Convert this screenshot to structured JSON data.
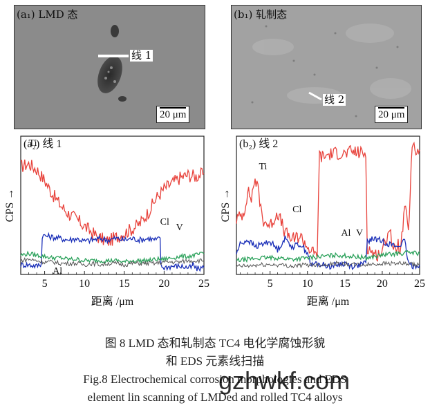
{
  "panels": {
    "a1": {
      "label": "(a₁) LMD 态",
      "line_label": "线 1",
      "scale": "20 μm"
    },
    "b1": {
      "label": "(b₁) 轧制态",
      "line_label": "线 2",
      "scale": "20 μm"
    }
  },
  "chart_data": [
    {
      "type": "line",
      "title": "(a₂) 线 1",
      "xlabel": "距离 /μm",
      "ylabel": "CPS",
      "xlim": [
        2,
        25
      ],
      "xticks": [
        5,
        10,
        15,
        20,
        25
      ],
      "ylim": [
        0,
        100
      ],
      "grid": false,
      "series": [
        {
          "name": "Ti",
          "color": "#e8423b",
          "x": [
            2,
            3,
            4,
            5,
            6,
            7,
            8,
            9,
            10,
            11,
            12,
            13,
            14,
            15,
            16,
            17,
            18,
            19,
            20,
            21,
            22,
            23,
            24,
            25
          ],
          "y": [
            78,
            80,
            76,
            68,
            58,
            50,
            44,
            40,
            35,
            30,
            26,
            24,
            27,
            30,
            33,
            37,
            45,
            55,
            62,
            66,
            70,
            72,
            71,
            73
          ]
        },
        {
          "name": "Cl",
          "color": "#1a2fb8",
          "x": [
            2,
            3,
            4,
            4.6,
            4.7,
            5,
            6,
            7,
            8,
            9,
            10,
            11,
            12,
            13,
            14,
            15,
            16,
            17,
            18,
            19,
            19.5,
            19.6,
            20,
            21,
            22,
            23,
            23.5,
            23.6,
            24,
            25
          ],
          "y": [
            7,
            7,
            6,
            8,
            28,
            28,
            27,
            26,
            25,
            26,
            24,
            25,
            26,
            25,
            26,
            25,
            26,
            25,
            26,
            25,
            26,
            6,
            5,
            6,
            6,
            5,
            5,
            8,
            4,
            5
          ]
        },
        {
          "name": "V",
          "color": "#2aa15a",
          "x": [
            2,
            3,
            4,
            5,
            6,
            7,
            8,
            9,
            10,
            11,
            12,
            13,
            14,
            15,
            16,
            17,
            18,
            19,
            20,
            21,
            22,
            23,
            24,
            25
          ],
          "y": [
            14,
            15,
            14,
            13,
            12,
            12,
            11,
            11,
            10,
            10,
            10,
            10,
            10,
            9,
            10,
            10,
            10,
            11,
            11,
            12,
            13,
            13,
            14,
            15
          ]
        },
        {
          "name": "Al",
          "color": "#555555",
          "x": [
            2,
            3,
            4,
            5,
            6,
            7,
            8,
            9,
            10,
            11,
            12,
            13,
            14,
            15,
            16,
            17,
            18,
            19,
            20,
            21,
            22,
            23,
            24,
            25
          ],
          "y": [
            10,
            11,
            10,
            9,
            9,
            8,
            8,
            8,
            7,
            8,
            7,
            8,
            8,
            7,
            8,
            8,
            8,
            8,
            9,
            9,
            9,
            10,
            10,
            10
          ]
        }
      ]
    },
    {
      "type": "line",
      "title": "(b₂) 线 2",
      "xlabel": "距离 /μm",
      "ylabel": "CPS",
      "xlim": [
        0.5,
        25
      ],
      "xticks": [
        5,
        10,
        15,
        20,
        25
      ],
      "ylim": [
        0,
        100
      ],
      "grid": false,
      "series": [
        {
          "name": "Ti",
          "color": "#e8423b",
          "x": [
            0.5,
            1,
            1.5,
            2,
            2.5,
            3,
            3.5,
            4,
            5,
            6,
            7,
            8,
            9,
            10,
            11,
            11.3,
            11.6,
            12,
            13,
            14,
            15,
            16,
            17,
            17.8,
            18,
            18.3,
            19,
            20,
            21,
            21.5,
            22,
            22.5,
            23,
            23.5,
            24,
            24.5,
            25
          ],
          "y": [
            40,
            42,
            45,
            60,
            55,
            70,
            58,
            40,
            35,
            45,
            30,
            25,
            28,
            20,
            14,
            15,
            86,
            85,
            87,
            88,
            87,
            89,
            88,
            87,
            20,
            18,
            14,
            16,
            35,
            15,
            22,
            18,
            50,
            30,
            92,
            89,
            90
          ]
        },
        {
          "name": "Cl",
          "color": "#1a2fb8",
          "x": [
            0.5,
            1,
            2,
            3,
            4,
            5,
            6,
            7,
            8,
            9,
            10,
            10.5,
            11,
            12,
            13,
            14,
            15,
            16,
            17,
            17.8,
            18,
            19,
            20,
            21,
            22,
            23,
            23.5,
            24,
            25
          ],
          "y": [
            15,
            22,
            25,
            20,
            22,
            24,
            18,
            26,
            20,
            22,
            16,
            6,
            8,
            7,
            6,
            7,
            8,
            6,
            7,
            8,
            24,
            26,
            24,
            22,
            20,
            24,
            8,
            6,
            7
          ]
        },
        {
          "name": "V",
          "color": "#2aa15a",
          "x": [
            0.5,
            2,
            4,
            6,
            8,
            10,
            12,
            14,
            16,
            18,
            20,
            22,
            24,
            25
          ],
          "y": [
            10,
            11,
            12,
            12,
            11,
            12,
            13,
            14,
            13,
            12,
            14,
            15,
            16,
            15
          ]
        },
        {
          "name": "Al",
          "color": "#555555",
          "x": [
            0.5,
            2,
            4,
            6,
            8,
            10,
            12,
            14,
            16,
            18,
            20,
            22,
            24,
            25
          ],
          "y": [
            6,
            6,
            7,
            7,
            6,
            7,
            7,
            8,
            7,
            7,
            8,
            8,
            7,
            7
          ]
        }
      ]
    }
  ],
  "captions": {
    "cn_line1": "图 8  LMD 态和轧制态 TC4 电化学腐蚀形貌",
    "cn_line2": "和 EDS 元素线扫描",
    "en_line1": "Fig.8  Electrochemical corrosion morphologies and EDS",
    "en_line2": "element lin scanning of LMDed and rolled TC4 alloys"
  },
  "watermark": "gzhwkf.com"
}
